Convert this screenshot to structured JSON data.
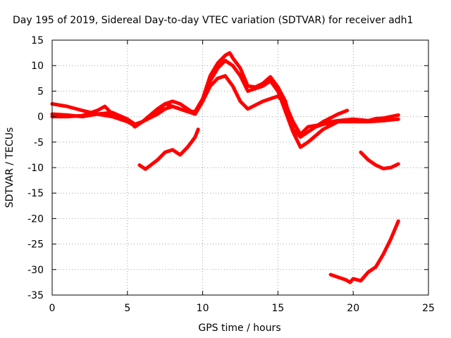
{
  "chart_data": {
    "type": "line",
    "title": "Day 195 of 2019, Sidereal Day-to-day VTEC variation (SDTVAR) for receiver adh1",
    "xlabel": "GPS time / hours",
    "ylabel": "SDTVAR / TECUs",
    "xlim": [
      0,
      25
    ],
    "ylim": [
      -35,
      15
    ],
    "xticks": [
      0,
      5,
      10,
      15,
      20,
      25
    ],
    "yticks": [
      15,
      10,
      5,
      0,
      -5,
      -10,
      -15,
      -20,
      -25,
      -30,
      -35
    ],
    "grid": true,
    "legend": "none",
    "color": "#ff0000",
    "series": [
      {
        "name": "s1",
        "x": [
          0,
          1,
          2,
          3,
          4,
          5,
          5.5,
          6,
          7,
          7.5,
          8,
          9,
          9.5,
          10,
          10.5,
          11,
          11.5,
          12,
          12.5,
          13,
          14,
          15,
          15.5,
          16,
          16.5,
          17,
          18,
          19,
          20,
          21,
          22,
          23
        ],
        "y": [
          2.5,
          2,
          1.2,
          0.5,
          0,
          -1,
          -1.8,
          -1,
          0.5,
          1.5,
          2,
          1,
          0.5,
          3,
          6,
          7.5,
          8,
          6,
          3,
          1.5,
          3,
          4,
          2.5,
          -1,
          -3.5,
          -2,
          -1.5,
          -1,
          -1,
          -1,
          -0.8,
          -0.5
        ]
      },
      {
        "name": "s2",
        "x": [
          0,
          1,
          2,
          3,
          4,
          5,
          5.5,
          6,
          7,
          7.5,
          8,
          8.5,
          9,
          9.5,
          10,
          10.5,
          11,
          11.5,
          12,
          12.5,
          13,
          14,
          14.5,
          15,
          15.5,
          16,
          16.5,
          17,
          18,
          19
        ],
        "y": [
          0.5,
          0.3,
          0,
          0.5,
          0.8,
          -0.5,
          -1.5,
          -1,
          1,
          2.5,
          3,
          2.5,
          1.5,
          0.5,
          3,
          7,
          9.5,
          11,
          10,
          8,
          5,
          6,
          7,
          5,
          1,
          -3,
          -6,
          -5,
          -2.5,
          -1
        ]
      },
      {
        "name": "s3",
        "x": [
          0,
          1,
          2,
          3,
          3.5,
          4,
          5,
          5.5,
          6,
          7,
          7.5,
          8,
          9,
          9.5,
          10,
          10.5,
          11,
          11.5,
          11.8,
          12,
          12.5,
          13,
          13.5,
          14,
          14.5,
          15,
          15.5,
          16,
          16.5,
          17,
          18,
          19,
          19.6
        ],
        "y": [
          0,
          0,
          0.2,
          1.2,
          2,
          0.5,
          -0.5,
          -2,
          -1,
          1.5,
          2.5,
          2,
          1,
          1,
          3.5,
          8,
          10.5,
          12,
          12.5,
          11.5,
          9.5,
          6,
          5.8,
          6.5,
          7.8,
          5.8,
          3,
          -2.5,
          -4,
          -3,
          -1,
          0.5,
          1.2
        ]
      },
      {
        "name": "s4",
        "x": [
          5.8,
          6.2,
          7,
          7.5,
          8,
          8.5,
          9,
          9.5,
          9.7
        ],
        "y": [
          -9.5,
          -10.3,
          -8.5,
          -7,
          -6.5,
          -7.5,
          -6,
          -4,
          -2.5
        ]
      },
      {
        "name": "s5",
        "x": [
          20.5,
          21,
          21.5,
          22,
          22.5,
          23
        ],
        "y": [
          -7,
          -8.5,
          -9.5,
          -10.2,
          -10,
          -9.3
        ]
      },
      {
        "name": "s6",
        "x": [
          18.5,
          19,
          19.5,
          19.8,
          20,
          20.5,
          21,
          21.5,
          22,
          22.5,
          23
        ],
        "y": [
          -31,
          -31.5,
          -32,
          -32.5,
          -31.8,
          -32.2,
          -30.5,
          -29.5,
          -27,
          -24,
          -20.5
        ]
      },
      {
        "name": "s7",
        "x": [
          17.5,
          18,
          18.5,
          19,
          20,
          21,
          21.5,
          22,
          22.5,
          23
        ],
        "y": [
          -2,
          -1.5,
          -1,
          -0.8,
          -0.5,
          -0.8,
          -0.4,
          -0.3,
          0,
          0.3
        ]
      }
    ]
  }
}
